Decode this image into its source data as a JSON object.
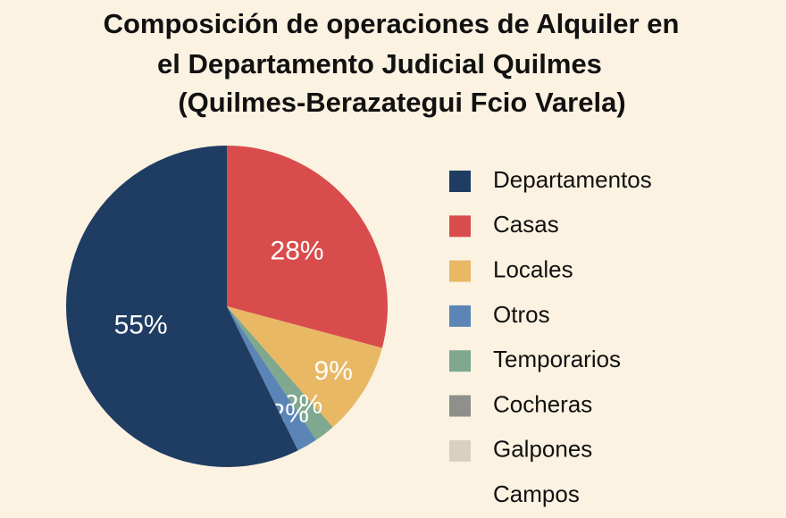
{
  "chart_data": {
    "type": "pie",
    "title": [
      "Composición de operaciones de Alquiler en",
      "el Departamento Judicial Quilmes",
      "(Quilmes-Berazategui Fcio Varela)"
    ],
    "categories": [
      "Departamentos",
      "Casas",
      "Locales",
      "Otros",
      "Temporarios",
      "Cocheras",
      "Galpones",
      "Campos"
    ],
    "values": [
      55,
      28,
      9,
      2,
      2,
      0,
      0,
      0
    ],
    "value_labels": [
      "55%",
      "28%",
      "9%",
      "2%",
      "2%",
      null,
      null,
      null
    ],
    "colors": [
      "#1f3d63",
      "#d94c4c",
      "#e8b865",
      "#5b85b6",
      "#7fa88f",
      "#8f8f8b",
      "#d8d1c1",
      null
    ]
  }
}
